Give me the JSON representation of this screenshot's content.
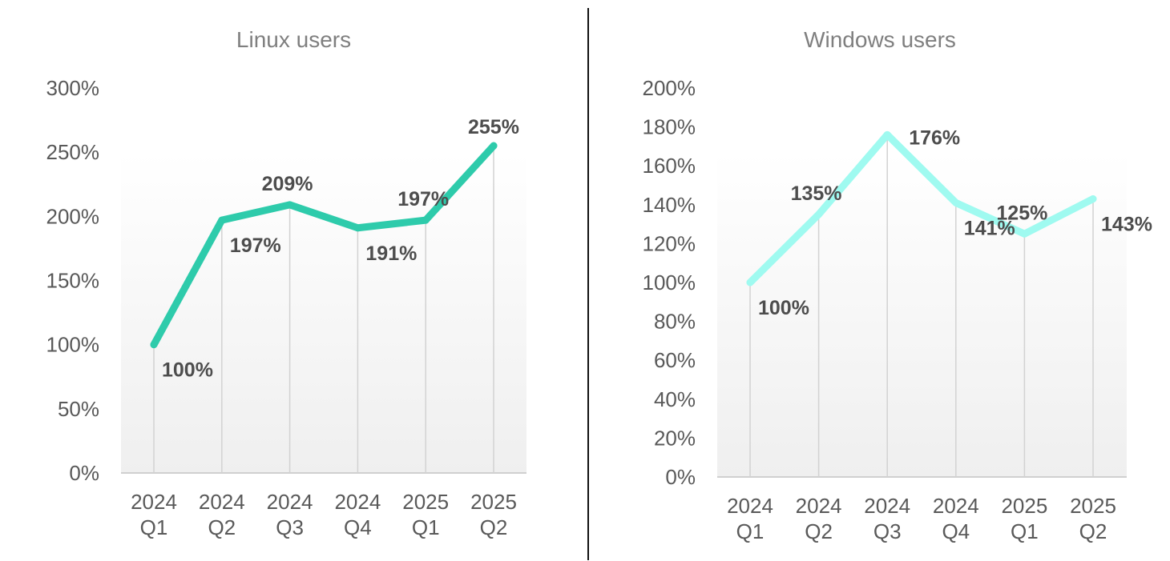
{
  "chart_data": [
    {
      "type": "line",
      "title": "Linux users",
      "categories": [
        "2024 Q1",
        "2024 Q2",
        "2024 Q3",
        "2024 Q4",
        "2025 Q1",
        "2025 Q2"
      ],
      "category_lines": [
        [
          "2024",
          "Q1"
        ],
        [
          "2024",
          "Q2"
        ],
        [
          "2024",
          "Q3"
        ],
        [
          "2024",
          "Q4"
        ],
        [
          "2025",
          "Q1"
        ],
        [
          "2025",
          "Q2"
        ]
      ],
      "values": [
        100,
        197,
        209,
        191,
        197,
        255
      ],
      "value_labels": [
        "100%",
        "197%",
        "209%",
        "191%",
        "197%",
        "255%"
      ],
      "label_positions": [
        "below",
        "below",
        "above",
        "below",
        "above",
        "above"
      ],
      "ylim": [
        0,
        300
      ],
      "yticks": [
        0,
        50,
        100,
        150,
        200,
        250,
        300
      ],
      "ytick_labels": [
        "0%",
        "50%",
        "100%",
        "150%",
        "200%",
        "250%",
        "300%"
      ],
      "xlabel": "",
      "ylabel": "",
      "color": "#2ecbab",
      "grid": false,
      "legend": "none"
    },
    {
      "type": "line",
      "title": "Windows users",
      "categories": [
        "2024 Q1",
        "2024 Q2",
        "2024 Q3",
        "2024 Q4",
        "2025 Q1",
        "2025 Q2"
      ],
      "category_lines": [
        [
          "2024",
          "Q1"
        ],
        [
          "2024",
          "Q2"
        ],
        [
          "2024",
          "Q3"
        ],
        [
          "2024",
          "Q4"
        ],
        [
          "2025",
          "Q1"
        ],
        [
          "2025",
          "Q2"
        ]
      ],
      "values": [
        100,
        135,
        176,
        141,
        125,
        143
      ],
      "value_labels": [
        "100%",
        "135%",
        "176%",
        "141%",
        "125%",
        "143%"
      ],
      "label_positions": [
        "below",
        "above",
        "right",
        "below",
        "above",
        "below"
      ],
      "ylim": [
        0,
        200
      ],
      "yticks": [
        0,
        20,
        40,
        60,
        80,
        100,
        120,
        140,
        160,
        180,
        200
      ],
      "ytick_labels": [
        "0%",
        "20%",
        "40%",
        "60%",
        "80%",
        "100%",
        "120%",
        "140%",
        "160%",
        "180%",
        "200%"
      ],
      "xlabel": "",
      "ylabel": "",
      "color": "#9ffaf0",
      "grid": false,
      "legend": "none"
    }
  ]
}
